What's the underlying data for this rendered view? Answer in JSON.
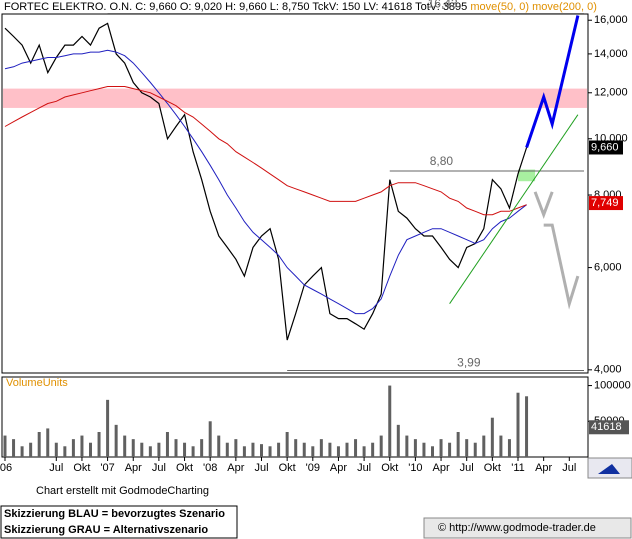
{
  "chart_data": [
    {
      "type": "line",
      "title": "FORTEC ELEKTRO. O.N.",
      "subtitle": "C: 9,660 O: 9,020 H: 9,660 L: 8,750 TckV: 150 LV: 41618 TotV: 3895",
      "log_scale": true,
      "ylim": [
        3.95,
        16.4
      ],
      "yticks": [
        {
          "value": 4,
          "label": "4,000"
        },
        {
          "value": 6,
          "label": "6,000"
        },
        {
          "value": 8,
          "label": "8,000"
        },
        {
          "value": 10,
          "label": "10,000"
        },
        {
          "value": 12,
          "label": "12,000"
        },
        {
          "value": 14,
          "label": "14,000"
        },
        {
          "value": 16,
          "label": "16,000"
        }
      ],
      "xticks": [
        {
          "value": "2006-01",
          "label": "'06"
        },
        {
          "value": "2006-07",
          "label": "Jul"
        },
        {
          "value": "2006-10",
          "label": "Okt"
        },
        {
          "value": "2007-01",
          "label": "'07"
        },
        {
          "value": "2007-04",
          "label": "Apr"
        },
        {
          "value": "2007-07",
          "label": "Jul"
        },
        {
          "value": "2007-10",
          "label": "Okt"
        },
        {
          "value": "2008-01",
          "label": "'08"
        },
        {
          "value": "2008-04",
          "label": "Apr"
        },
        {
          "value": "2008-07",
          "label": "Jul"
        },
        {
          "value": "2008-10",
          "label": "Okt"
        },
        {
          "value": "2009-01",
          "label": "'09"
        },
        {
          "value": "2009-04",
          "label": "Apr"
        },
        {
          "value": "2009-07",
          "label": "Jul"
        },
        {
          "value": "2009-10",
          "label": "Okt"
        },
        {
          "value": "2010-01",
          "label": "'10"
        },
        {
          "value": "2010-04",
          "label": "Apr"
        },
        {
          "value": "2010-07",
          "label": "Jul"
        },
        {
          "value": "2010-10",
          "label": "Okt"
        },
        {
          "value": "2011-01",
          "label": "'11"
        },
        {
          "value": "2011-04",
          "label": "Apr"
        },
        {
          "value": "2011-07",
          "label": "Jul"
        }
      ],
      "x": [
        "2006-01",
        "2006-02",
        "2006-03",
        "2006-04",
        "2006-05",
        "2006-06",
        "2006-07",
        "2006-08",
        "2006-09",
        "2006-10",
        "2006-11",
        "2006-12",
        "2007-01",
        "2007-02",
        "2007-03",
        "2007-04",
        "2007-05",
        "2007-06",
        "2007-07",
        "2007-08",
        "2007-09",
        "2007-10",
        "2007-11",
        "2007-12",
        "2008-01",
        "2008-02",
        "2008-03",
        "2008-04",
        "2008-05",
        "2008-06",
        "2008-07",
        "2008-08",
        "2008-09",
        "2008-10",
        "2008-11",
        "2008-12",
        "2009-01",
        "2009-02",
        "2009-03",
        "2009-04",
        "2009-05",
        "2009-06",
        "2009-07",
        "2009-08",
        "2009-09",
        "2009-10",
        "2009-11",
        "2009-12",
        "2010-01",
        "2010-02",
        "2010-03",
        "2010-04",
        "2010-05",
        "2010-06",
        "2010-07",
        "2010-08",
        "2010-09",
        "2010-10",
        "2010-11",
        "2010-12",
        "2011-01",
        "2011-02"
      ],
      "series": [
        {
          "color": "#000000",
          "width": 1.2,
          "values": [
            15.5,
            15,
            14.5,
            13.5,
            14.5,
            13,
            13.8,
            14.5,
            14.5,
            15,
            14.5,
            15.5,
            15.8,
            14,
            13.5,
            12.5,
            12,
            11.8,
            11.5,
            10,
            10.5,
            11,
            9.5,
            8.5,
            7.5,
            6.8,
            6.5,
            6.2,
            5.8,
            6.5,
            6.8,
            7,
            6.2,
            4.5,
            5,
            5.6,
            5.8,
            6,
            5,
            4.9,
            4.9,
            4.8,
            4.7,
            5,
            5.4,
            8.5,
            7.5,
            7.3,
            7,
            6.8,
            6.8,
            6.5,
            6.2,
            6,
            6.5,
            6.6,
            7,
            8.5,
            8.2,
            7.6,
            8.7,
            9.66
          ]
        },
        {
          "name": "move(50, 0)",
          "color": "#2020c0",
          "width": 1,
          "values": [
            13.2,
            13.3,
            13.5,
            13.6,
            13.7,
            13.8,
            13.8,
            13.9,
            14,
            14,
            14.1,
            14.1,
            14.2,
            14.1,
            13.9,
            13.5,
            13,
            12.5,
            12,
            11.5,
            11,
            10.5,
            10,
            9.5,
            9,
            8.5,
            8,
            7.6,
            7.2,
            6.9,
            6.7,
            6.5,
            6.3,
            6,
            5.8,
            5.6,
            5.5,
            5.4,
            5.3,
            5.2,
            5.1,
            5,
            5,
            5.1,
            5.3,
            5.8,
            6.3,
            6.7,
            6.8,
            6.9,
            7,
            7,
            6.9,
            6.8,
            6.7,
            6.6,
            6.7,
            7,
            7.2,
            7.3,
            7.5,
            7.7
          ]
        },
        {
          "name": "move(200, 0)",
          "color": "#d01010",
          "width": 1,
          "values": [
            10.5,
            10.7,
            10.9,
            11.1,
            11.3,
            11.5,
            11.6,
            11.8,
            11.9,
            12,
            12.1,
            12.2,
            12.3,
            12.3,
            12.3,
            12.2,
            12.1,
            12,
            11.8,
            11.6,
            11.4,
            11.1,
            10.9,
            10.6,
            10.3,
            10,
            9.8,
            9.5,
            9.3,
            9.1,
            8.9,
            8.7,
            8.5,
            8.3,
            8.2,
            8.1,
            8,
            7.9,
            7.8,
            7.8,
            7.8,
            7.8,
            7.9,
            8,
            8.1,
            8.3,
            8.4,
            8.4,
            8.4,
            8.3,
            8.2,
            8.1,
            7.9,
            7.8,
            7.6,
            7.5,
            7.4,
            7.4,
            7.5,
            7.5,
            7.6,
            7.7
          ]
        }
      ],
      "scenarios": [
        {
          "color": "#0000ee",
          "width": 3,
          "x": [
            "2011-02",
            "2011-04",
            "2011-05",
            "2011-08"
          ],
          "values": [
            9.66,
            11.8,
            10.6,
            16.3
          ]
        },
        {
          "color": "#b0b0b0",
          "width": 3,
          "x": [
            "2011-03",
            "2011-04",
            "2011-05"
          ],
          "values": [
            8.1,
            7.4,
            8.1
          ]
        },
        {
          "color": "#b0b0b0",
          "width": 3,
          "x": [
            "2011-04",
            "2011-05",
            "2011-07",
            "2011-08"
          ],
          "values": [
            7.1,
            7.1,
            5.2,
            5.8
          ]
        },
        {
          "color": "#20a020",
          "width": 1,
          "x": [
            "2010-05",
            "2011-08"
          ],
          "values": [
            5.2,
            11
          ]
        }
      ],
      "zone": {
        "from": 11.3,
        "to": 12.2,
        "color": "#ffc0c8"
      },
      "box": {
        "x": [
          "2011-01",
          "2011-03"
        ],
        "values": [
          8.45,
          8.85
        ],
        "color": "#a8f0a0"
      },
      "levels": [
        {
          "value": 16.43,
          "label": "16,43",
          "from": "2007-01"
        },
        {
          "value": 8.8,
          "label": "8,80",
          "from": "2009-10"
        },
        {
          "value": 3.99,
          "label": "3,99",
          "from": "2008-10"
        }
      ],
      "price_tags": [
        {
          "value": 9.66,
          "label": "9,660",
          "color": "#000000"
        },
        {
          "value": 7.749,
          "label": "7,749",
          "color": "#e00000"
        }
      ]
    },
    {
      "type": "bar",
      "title": "VolumeUnits",
      "color": "#606060",
      "ylim": [
        0,
        112000
      ],
      "yticks": [
        50000,
        100000
      ],
      "current_value": 41618,
      "values": [
        30000,
        25000,
        15000,
        20000,
        35000,
        40000,
        20000,
        15000,
        25000,
        30000,
        20000,
        35000,
        80000,
        45000,
        30000,
        25000,
        20000,
        15000,
        20000,
        35000,
        25000,
        20000,
        15000,
        25000,
        50000,
        30000,
        20000,
        25000,
        15000,
        20000,
        18000,
        15000,
        20000,
        35000,
        25000,
        20000,
        15000,
        25000,
        20000,
        15000,
        20000,
        25000,
        15000,
        20000,
        30000,
        100000,
        45000,
        30000,
        25000,
        20000,
        15000,
        25000,
        20000,
        35000,
        25000,
        20000,
        30000,
        55000,
        30000,
        25000,
        90000,
        85000
      ]
    }
  ],
  "footer": {
    "credit": "Chart erstellt mit GodmodeCharting",
    "note_blue": "Skizzierung BLAU = bevorzugtes Szenario",
    "note_gray": "Skizzierung GRAU = Alternativszenario",
    "url": "© http://www.godmode-trader.de"
  }
}
